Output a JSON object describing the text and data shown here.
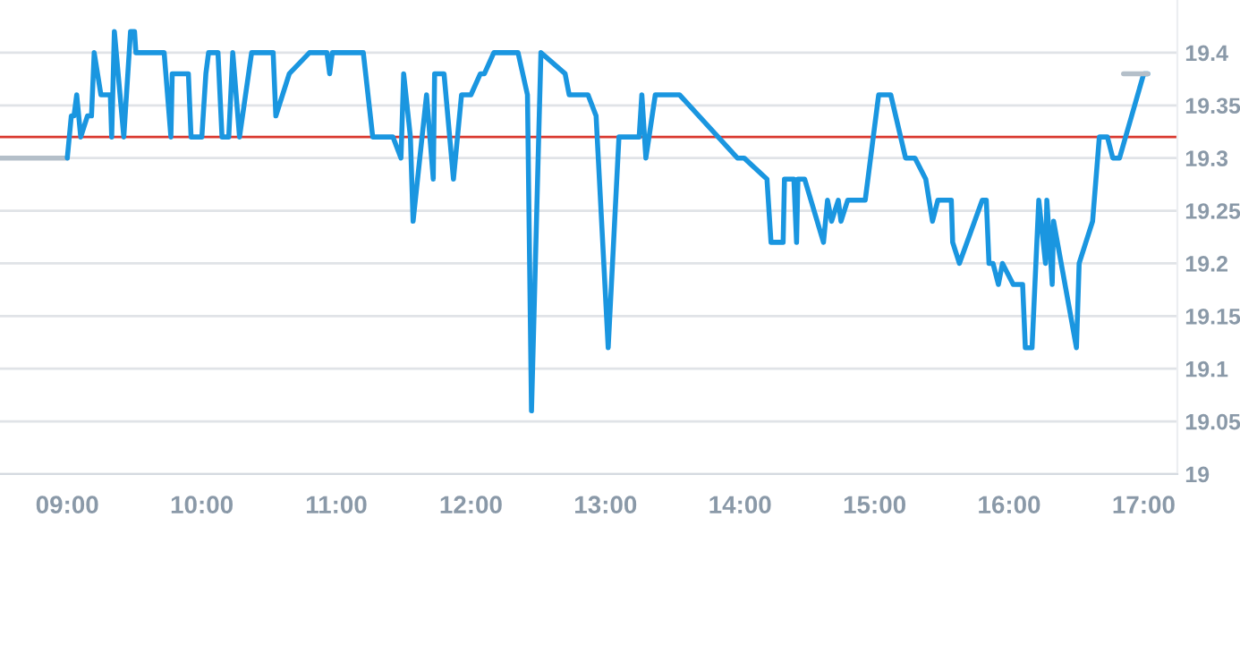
{
  "chart_data": {
    "type": "line",
    "xlim": [
      8.5,
      17.25
    ],
    "ylim": [
      19,
      19.45
    ],
    "xticks": [
      {
        "value": 9,
        "label": "09:00"
      },
      {
        "value": 10,
        "label": "10:00"
      },
      {
        "value": 11,
        "label": "11:00"
      },
      {
        "value": 12,
        "label": "12:00"
      },
      {
        "value": 13,
        "label": "13:00"
      },
      {
        "value": 14,
        "label": "14:00"
      },
      {
        "value": 15,
        "label": "15:00"
      },
      {
        "value": 16,
        "label": "16:00"
      },
      {
        "value": 17,
        "label": "17:00"
      }
    ],
    "yticks": [
      19,
      19.05,
      19.1,
      19.15,
      19.2,
      19.25,
      19.3,
      19.35,
      19.4
    ],
    "grid": "y",
    "legend": false,
    "line_style": "solid",
    "marker": "none",
    "ref_lines": [
      {
        "axis": "y",
        "value": 19.32,
        "color": "#d9382f"
      }
    ],
    "series": [
      {
        "color": "#b4bfc9",
        "x": [
          8.5,
          9.0
        ],
        "values": [
          19.3,
          19.3
        ]
      },
      {
        "color": "#1a96e0",
        "x": [
          9.0,
          9.03,
          9.05,
          9.07,
          9.1,
          9.15,
          9.18,
          9.2,
          9.25,
          9.32,
          9.33,
          9.35,
          9.42,
          9.47,
          9.5,
          9.51,
          9.72,
          9.77,
          9.78,
          9.9,
          9.92,
          10.0,
          10.03,
          10.05,
          10.12,
          10.15,
          10.2,
          10.23,
          10.28,
          10.37,
          10.53,
          10.55,
          10.65,
          10.8,
          10.93,
          10.95,
          10.97,
          11.2,
          11.27,
          11.42,
          11.48,
          11.5,
          11.55,
          11.57,
          11.67,
          11.72,
          11.73,
          11.8,
          11.87,
          11.93,
          12.0,
          12.07,
          12.1,
          12.17,
          12.35,
          12.42,
          12.45,
          12.52,
          12.7,
          12.73,
          12.87,
          12.93,
          13.02,
          13.1,
          13.25,
          13.27,
          13.3,
          13.37,
          13.55,
          13.98,
          14.03,
          14.2,
          14.23,
          14.32,
          14.33,
          14.4,
          14.42,
          14.43,
          14.48,
          14.62,
          14.65,
          14.68,
          14.73,
          14.75,
          14.8,
          14.93,
          15.03,
          15.12,
          15.23,
          15.3,
          15.38,
          15.43,
          15.47,
          15.57,
          15.58,
          15.63,
          15.8,
          15.83,
          15.85,
          15.88,
          15.92,
          15.95,
          16.03,
          16.1,
          16.12,
          16.17,
          16.22,
          16.27,
          16.28,
          16.32,
          16.33,
          16.5,
          16.52,
          16.62,
          16.67,
          16.73,
          16.77,
          16.82,
          17.0,
          17.03
        ],
        "values": [
          19.3,
          19.34,
          19.34,
          19.36,
          19.32,
          19.34,
          19.34,
          19.4,
          19.36,
          19.36,
          19.32,
          19.42,
          19.32,
          19.42,
          19.42,
          19.4,
          19.4,
          19.32,
          19.38,
          19.38,
          19.32,
          19.32,
          19.38,
          19.4,
          19.4,
          19.32,
          19.32,
          19.4,
          19.32,
          19.4,
          19.4,
          19.34,
          19.38,
          19.4,
          19.4,
          19.38,
          19.4,
          19.4,
          19.32,
          19.32,
          19.3,
          19.38,
          19.32,
          19.24,
          19.36,
          19.28,
          19.38,
          19.38,
          19.28,
          19.36,
          19.36,
          19.38,
          19.38,
          19.4,
          19.4,
          19.36,
          19.06,
          19.4,
          19.38,
          19.36,
          19.36,
          19.34,
          19.12,
          19.32,
          19.32,
          19.36,
          19.3,
          19.36,
          19.36,
          19.3,
          19.3,
          19.28,
          19.22,
          19.22,
          19.28,
          19.28,
          19.22,
          19.28,
          19.28,
          19.22,
          19.26,
          19.24,
          19.26,
          19.24,
          19.26,
          19.26,
          19.36,
          19.36,
          19.3,
          19.3,
          19.28,
          19.24,
          19.26,
          19.26,
          19.22,
          19.2,
          19.26,
          19.26,
          19.2,
          19.2,
          19.18,
          19.2,
          19.18,
          19.18,
          19.12,
          19.12,
          19.26,
          19.2,
          19.26,
          19.18,
          19.24,
          19.12,
          19.2,
          19.24,
          19.32,
          19.32,
          19.3,
          19.3,
          19.38,
          19.38
        ]
      },
      {
        "color": "#b4bfc9",
        "x": [
          16.85,
          17.03
        ],
        "values": [
          19.38,
          19.38
        ]
      }
    ]
  }
}
